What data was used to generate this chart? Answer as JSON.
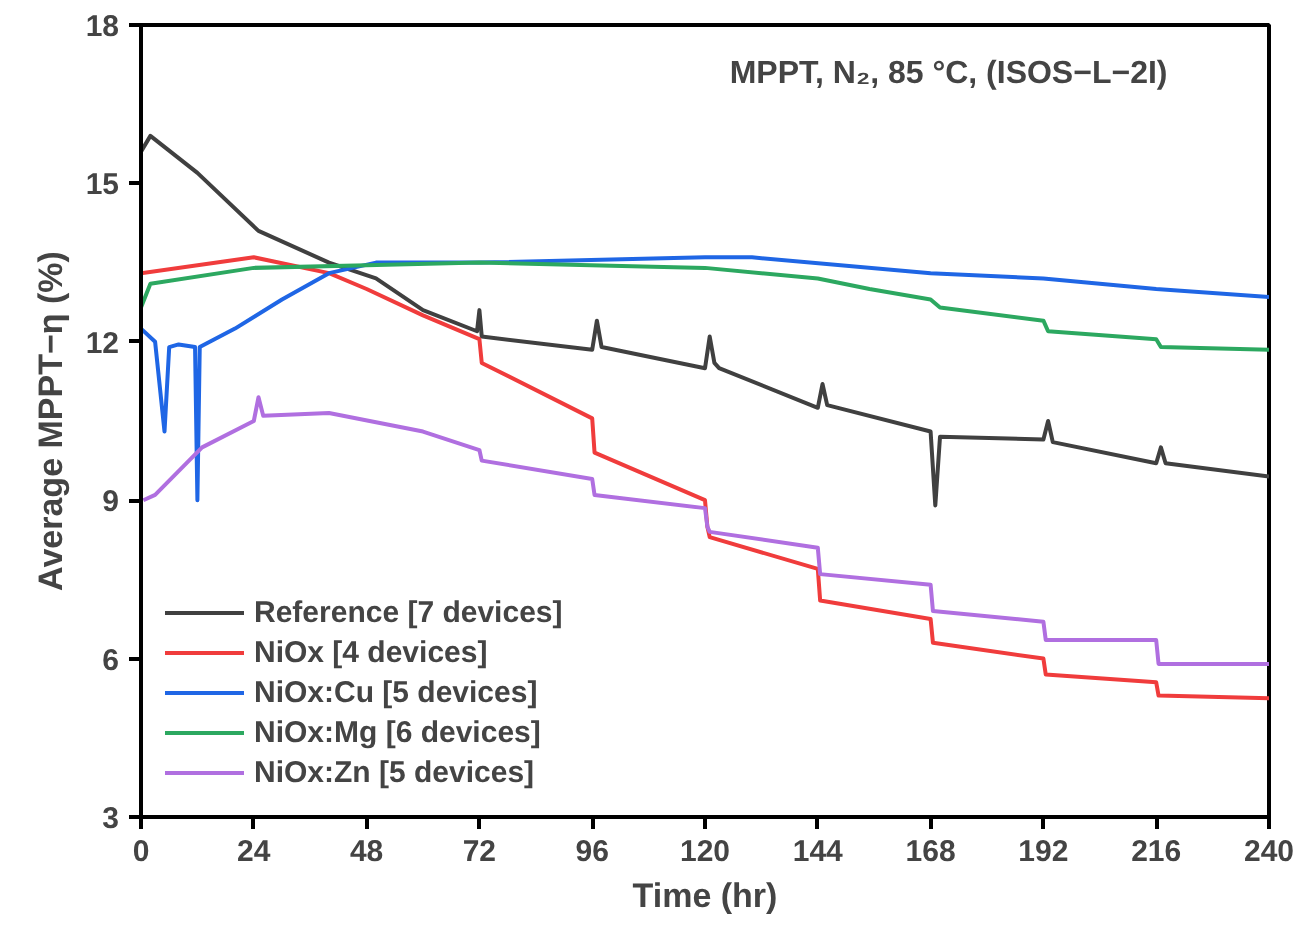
{
  "chart_data": {
    "type": "line",
    "title": "MPPT, N₂, 85 °C, (ISOS−L−2I)",
    "xlabel": "Time (hr)",
    "ylabel": "Average MPPT−η (%)",
    "xlim": [
      0,
      240
    ],
    "ylim": [
      3,
      18
    ],
    "xticks": [
      0,
      24,
      48,
      72,
      96,
      120,
      144,
      168,
      192,
      216,
      240
    ],
    "yticks": [
      3,
      6,
      9,
      12,
      15,
      18
    ],
    "grid": false,
    "legend": "bottom left",
    "marker": "none",
    "line_style": "solid",
    "series": [
      {
        "name": "Reference [7 devices]",
        "color": "#404040",
        "x": [
          0,
          2,
          12,
          25,
          40,
          50,
          60,
          71.5,
          72,
          72.5,
          96,
          97,
          98,
          120,
          121,
          122,
          123,
          144,
          145,
          146,
          168,
          169,
          170,
          192,
          193,
          194,
          216,
          217,
          218,
          240
        ],
        "values": [
          15.6,
          15.9,
          15.2,
          14.1,
          13.5,
          13.2,
          12.6,
          12.2,
          12.6,
          12.1,
          11.85,
          12.4,
          11.9,
          11.5,
          12.1,
          11.6,
          11.5,
          10.75,
          11.2,
          10.8,
          10.3,
          8.9,
          10.2,
          10.15,
          10.5,
          10.1,
          9.7,
          10.0,
          9.7,
          9.45
        ]
      },
      {
        "name": "NiOx [4 devices]",
        "color": "#f03c3c",
        "x": [
          0,
          24,
          40,
          48,
          60,
          72,
          72.5,
          96,
          96.5,
          120,
          120.5,
          121,
          144,
          144.5,
          168,
          168.5,
          192,
          192.5,
          216,
          216.5,
          240
        ],
        "values": [
          13.3,
          13.6,
          13.3,
          13.0,
          12.5,
          12.05,
          11.6,
          10.55,
          9.9,
          9.0,
          8.5,
          8.3,
          7.7,
          7.1,
          6.75,
          6.3,
          6.0,
          5.7,
          5.55,
          5.3,
          5.25
        ]
      },
      {
        "name": "NiOx:Cu [5 devices]",
        "color": "#1f66e5",
        "x": [
          0,
          3,
          5,
          6,
          8,
          11.5,
          12,
          12.5,
          20,
          30,
          40,
          50,
          72,
          120,
          130,
          168,
          192,
          216,
          240
        ],
        "values": [
          12.25,
          12.0,
          10.3,
          11.9,
          11.95,
          11.9,
          9.0,
          11.9,
          12.25,
          12.8,
          13.3,
          13.5,
          13.5,
          13.6,
          13.6,
          13.3,
          13.2,
          13.0,
          12.85
        ]
      },
      {
        "name": "NiOx:Mg [6 devices]",
        "color": "#2ca860",
        "x": [
          0,
          2,
          24,
          48,
          72,
          120,
          144,
          155,
          168,
          170,
          192,
          193,
          216,
          217,
          240
        ],
        "values": [
          12.65,
          13.1,
          13.4,
          13.45,
          13.5,
          13.4,
          13.2,
          13.0,
          12.8,
          12.65,
          12.4,
          12.2,
          12.05,
          11.9,
          11.85
        ]
      },
      {
        "name": "NiOx:Zn [5 devices]",
        "color": "#b06fe0",
        "x": [
          0.5,
          3,
          13,
          24,
          25,
          26,
          40,
          60,
          72,
          72.5,
          96,
          96.5,
          120,
          120.5,
          121,
          144,
          144.5,
          168,
          168.5,
          192,
          192.5,
          216,
          216.5,
          240
        ],
        "values": [
          9.0,
          9.1,
          10.0,
          10.5,
          10.95,
          10.6,
          10.65,
          10.3,
          9.95,
          9.75,
          9.4,
          9.1,
          8.85,
          8.5,
          8.4,
          8.1,
          7.6,
          7.4,
          6.9,
          6.7,
          6.35,
          6.35,
          5.9,
          5.9
        ]
      }
    ]
  }
}
